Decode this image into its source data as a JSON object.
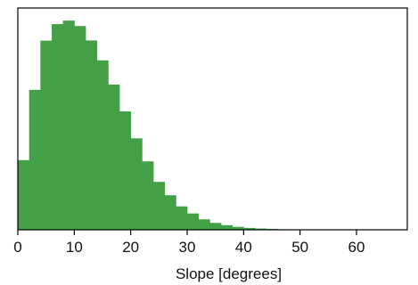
{
  "chart_data": {
    "type": "bar",
    "subtype": "histogram",
    "xlabel": "Slope [degrees]",
    "ylabel": "",
    "xlim": [
      0,
      69
    ],
    "ylim": [
      0,
      1.06
    ],
    "x_ticks": [
      0,
      10,
      20,
      30,
      40,
      50,
      60
    ],
    "y_ticks_shown": false,
    "bin_width": 2,
    "bins": [
      [
        0,
        2,
        0.333
      ],
      [
        2,
        4,
        0.669
      ],
      [
        4,
        6,
        0.904
      ],
      [
        6,
        8,
        0.983
      ],
      [
        8,
        10,
        1.0
      ],
      [
        10,
        12,
        0.974
      ],
      [
        12,
        14,
        0.905
      ],
      [
        14,
        16,
        0.81
      ],
      [
        16,
        18,
        0.694
      ],
      [
        18,
        20,
        0.566
      ],
      [
        20,
        22,
        0.437
      ],
      [
        22,
        24,
        0.327
      ],
      [
        24,
        26,
        0.229
      ],
      [
        26,
        28,
        0.165
      ],
      [
        28,
        30,
        0.112
      ],
      [
        30,
        32,
        0.078
      ],
      [
        32,
        34,
        0.05
      ],
      [
        34,
        36,
        0.033
      ],
      [
        36,
        38,
        0.022
      ],
      [
        38,
        40,
        0.014
      ],
      [
        40,
        42,
        0.009
      ],
      [
        42,
        44,
        0.006
      ],
      [
        44,
        46,
        0.004
      ],
      [
        46,
        48,
        0.0025
      ],
      [
        48,
        50,
        0.0015
      ],
      [
        50,
        52,
        0.001
      ]
    ],
    "bar_color": "#43a047",
    "grid": false,
    "legend": "none"
  }
}
